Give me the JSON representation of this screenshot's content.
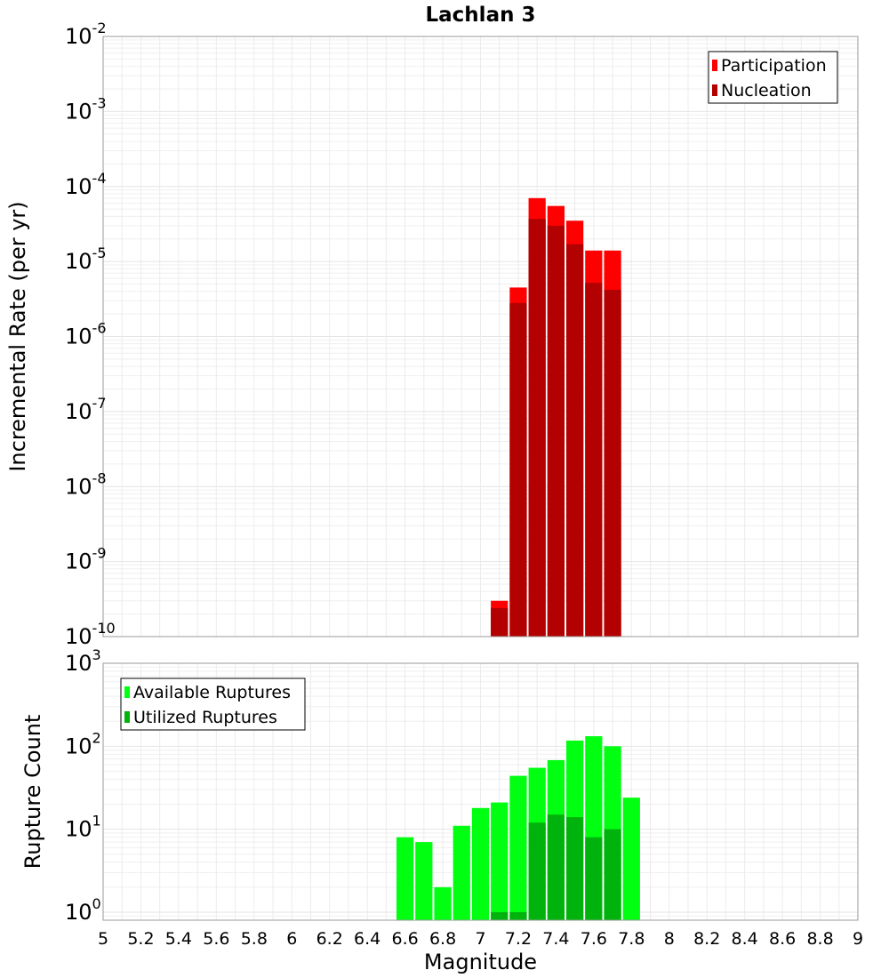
{
  "chart_data": [
    {
      "type": "bar",
      "title": "Lachlan 3",
      "ylabel": "Incremental Rate (per yr)",
      "xlabel": "",
      "y_scale": "log",
      "ylim": [
        1e-10,
        0.01
      ],
      "xlim": [
        5,
        9
      ],
      "bin_width": 0.1,
      "grid": true,
      "legend_position": "top-right",
      "y_tick_labels": [
        {
          "base": "10",
          "exp": "-2"
        },
        {
          "base": "10",
          "exp": "-3"
        },
        {
          "base": "10",
          "exp": "-4"
        },
        {
          "base": "10",
          "exp": "-5"
        },
        {
          "base": "10",
          "exp": "-6"
        },
        {
          "base": "10",
          "exp": "-7"
        },
        {
          "base": "10",
          "exp": "-8"
        },
        {
          "base": "10",
          "exp": "-9"
        },
        {
          "base": "10",
          "exp": "-10"
        }
      ],
      "x": [
        7.1,
        7.2,
        7.3,
        7.4,
        7.5,
        7.6,
        7.7
      ],
      "series": [
        {
          "name": "Participation",
          "color": "#ff0000",
          "values": [
            3e-10,
            4.5e-06,
            7e-05,
            5.5e-05,
            3.5e-05,
            1.4e-05,
            1.4e-05
          ]
        },
        {
          "name": "Nucleation",
          "color": "#b30000",
          "values": [
            2.4e-10,
            2.8e-06,
            3.7e-05,
            3e-05,
            1.7e-05,
            5.2e-06,
            4.2e-06
          ]
        }
      ]
    },
    {
      "type": "bar",
      "title": "",
      "ylabel": "Rupture Count",
      "xlabel": "Magnitude",
      "y_scale": "log",
      "ylim": [
        0.8,
        1000
      ],
      "xlim": [
        5,
        9
      ],
      "bin_width": 0.1,
      "grid": true,
      "legend_position": "top-left",
      "y_tick_labels": [
        {
          "base": "10",
          "exp": "3"
        },
        {
          "base": "10",
          "exp": "2"
        },
        {
          "base": "10",
          "exp": "1"
        },
        {
          "base": "10",
          "exp": "0"
        }
      ],
      "x_tick_labels": [
        "5",
        "5.2",
        "5.4",
        "5.6",
        "5.8",
        "6",
        "6.2",
        "6.4",
        "6.6",
        "6.8",
        "7",
        "7.2",
        "7.4",
        "7.6",
        "7.8",
        "8",
        "8.2",
        "8.4",
        "8.6",
        "8.8",
        "9"
      ],
      "x": [
        6.6,
        6.7,
        6.8,
        6.9,
        7.0,
        7.1,
        7.2,
        7.3,
        7.4,
        7.5,
        7.6,
        7.7,
        7.8
      ],
      "series": [
        {
          "name": "Available Ruptures",
          "color": "#00ff11",
          "values": [
            8,
            7,
            2,
            11,
            18,
            21,
            44,
            55,
            68,
            117,
            132,
            100,
            24
          ]
        },
        {
          "name": "Utilized Ruptures",
          "color": "#00b30c",
          "values": [
            null,
            null,
            null,
            null,
            null,
            1,
            1,
            12,
            15,
            14,
            8,
            10,
            null
          ]
        }
      ]
    }
  ]
}
